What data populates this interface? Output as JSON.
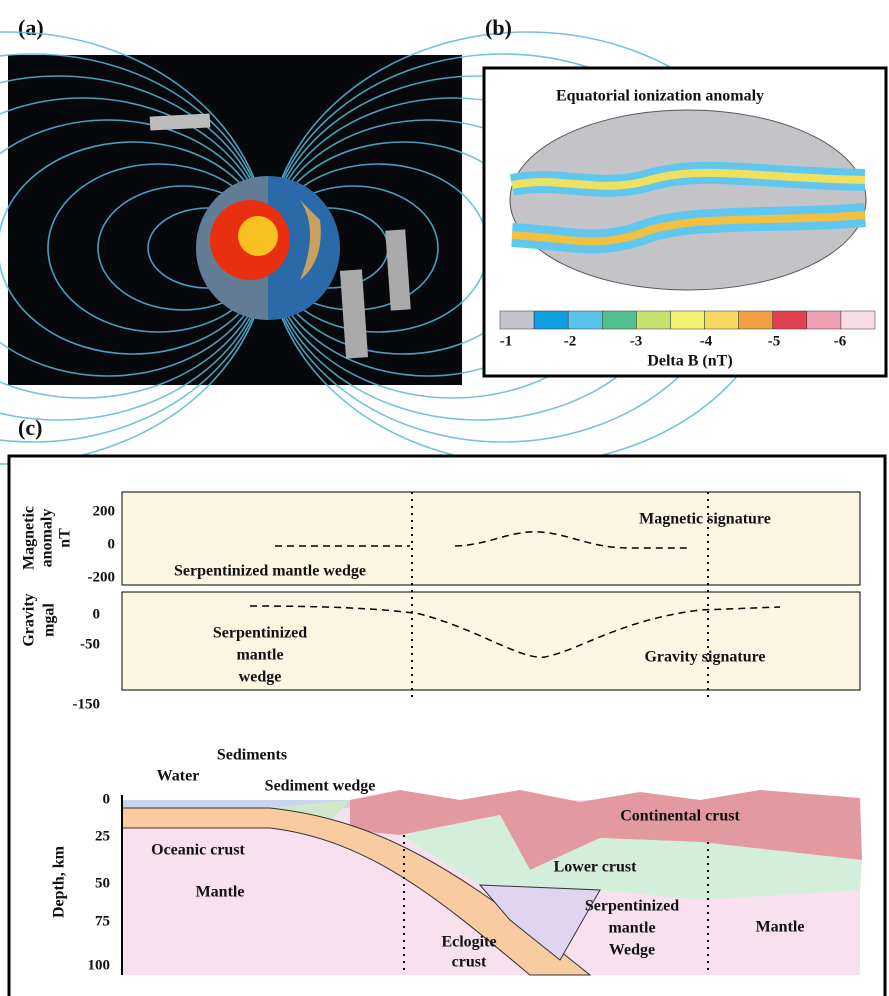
{
  "panel_a": {
    "label": "(a)"
  },
  "panel_b": {
    "label": "(b)",
    "title": "Equatorial ionization anomaly",
    "colorbar_ticks": [
      -1,
      -2,
      -3,
      -4,
      -5,
      -6
    ],
    "colorbar_label": "Delta B (nT)"
  },
  "panel_c": {
    "label": "(c)",
    "magnetic": {
      "axis_label": [
        "Magnetic",
        "anomaly",
        "nT"
      ],
      "ticks": [
        200,
        0,
        -200
      ],
      "signature": "Magnetic signature",
      "annotation": "Serpentinized  mantle wedge"
    },
    "gravity": {
      "axis_label": [
        "Gravity",
        "mgal"
      ],
      "ticks": [
        0,
        -50,
        -150
      ],
      "signature": "Gravity signature",
      "annotation": [
        "Serpentinized",
        "mantle",
        "wedge"
      ]
    },
    "section": {
      "axis_label": "Depth, km",
      "ticks": [
        0,
        25,
        50,
        75,
        100
      ],
      "labels": {
        "water": "Water",
        "sediments": "Sediments",
        "sediment_wedge": "Sediment wedge",
        "continental_crust": "Continental  crust",
        "oceanic_crust": "Oceanic crust",
        "lower_crust": "Lower crust",
        "mantle_left": "Mantle",
        "wedge": [
          "Serpentinized",
          "mantle",
          "Wedge"
        ],
        "eclogite": [
          "Eclogite",
          "crust"
        ],
        "mantle_right": "Mantle"
      }
    }
  }
}
